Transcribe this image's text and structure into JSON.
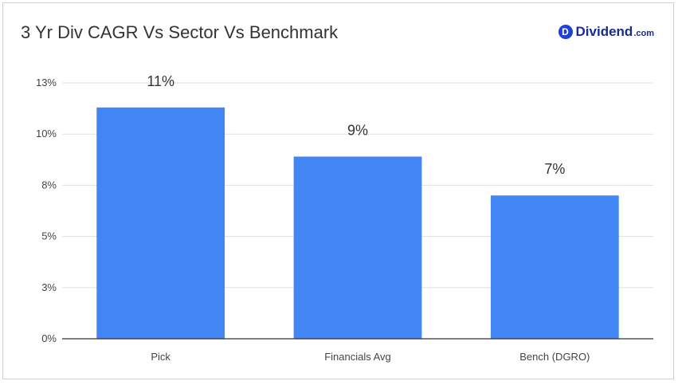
{
  "header": {
    "title": "3 Yr Div CAGR Vs Sector Vs Benchmark",
    "brand_badge": "D",
    "brand_name": "Dividend",
    "brand_suffix": ".com"
  },
  "colors": {
    "bar": "#4285f4",
    "grid": "#e0e0e0",
    "axis": "#333333"
  },
  "chart_data": {
    "type": "bar",
    "title": "3 Yr Div CAGR Vs Sector Vs Benchmark",
    "xlabel": "",
    "ylabel": "",
    "categories": [
      "Pick",
      "Financials Avg",
      "Bench (DGRO)"
    ],
    "values": [
      11.3,
      8.9,
      7.0
    ],
    "data_labels": [
      "11%",
      "9%",
      "7%"
    ],
    "ylim": [
      0,
      12.5
    ],
    "yticks": [
      0,
      2.5,
      5,
      7.5,
      10,
      12.5
    ],
    "ytick_labels": [
      "0%",
      "3%",
      "5%",
      "8%",
      "10%",
      "13%"
    ],
    "grid": true,
    "legend": "none"
  }
}
